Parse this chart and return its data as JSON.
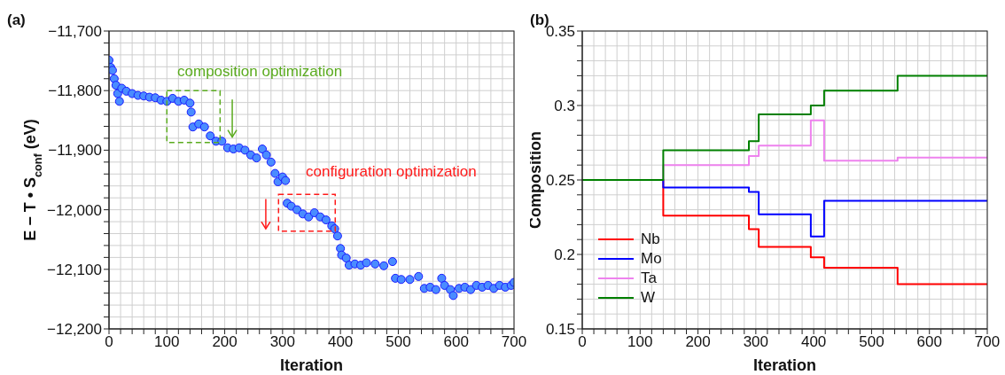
{
  "chart_data": [
    {
      "type": "scatter",
      "title": "(a)",
      "xlabel": "Iteration",
      "ylabel": "E − T • S$_{conf}$ (eV)",
      "color": "#4a8cff",
      "marker": "circle",
      "grid": true,
      "x": [
        0,
        3,
        6,
        9,
        12,
        15,
        18,
        22,
        30,
        40,
        50,
        60,
        70,
        80,
        90,
        100,
        110,
        120,
        130,
        140,
        142,
        145,
        155,
        165,
        175,
        185,
        195,
        205,
        215,
        225,
        235,
        245,
        255,
        265,
        272,
        280,
        287,
        292,
        300,
        305,
        308,
        315,
        325,
        335,
        345,
        355,
        365,
        375,
        385,
        390,
        395,
        400,
        402,
        410,
        415,
        425,
        435,
        445,
        460,
        475,
        490,
        495,
        505,
        520,
        535,
        545,
        555,
        565,
        575,
        580,
        590,
        595,
        605,
        615,
        625,
        635,
        645,
        655,
        665,
        675,
        685,
        695,
        700
      ],
      "values": [
        -11749,
        -11761,
        -11766,
        -11780,
        -11791,
        -11805,
        -11818,
        -11796,
        -11801,
        -11805,
        -11808,
        -11809,
        -11811,
        -11812,
        -11816,
        -11818,
        -11813,
        -11818,
        -11816,
        -11821,
        -11836,
        -11861,
        -11856,
        -11861,
        -11876,
        -11885,
        -11885,
        -11896,
        -11898,
        -11896,
        -11900,
        -11908,
        -11913,
        -11898,
        -11908,
        -11920,
        -11939,
        -11953,
        -11945,
        -11951,
        -11989,
        -11994,
        -12000,
        -12007,
        -12012,
        -12005,
        -12012,
        -12017,
        -12027,
        -12032,
        -12044,
        -12065,
        -12076,
        -12081,
        -12093,
        -12091,
        -12093,
        -12089,
        -12091,
        -12094,
        -12087,
        -12115,
        -12117,
        -12117,
        -12112,
        -12132,
        -12130,
        -12134,
        -12115,
        -12127,
        -12134,
        -12144,
        -12132,
        -12130,
        -12134,
        -12127,
        -12130,
        -12127,
        -12132,
        -12127,
        -12130,
        -12127,
        -12122
      ],
      "xlim": [
        0,
        700
      ],
      "xticks": [
        0,
        {
          "value": 20,
          "label": null
        },
        {
          "value": 40,
          "label": null
        },
        {
          "value": 60,
          "label": null
        },
        {
          "value": 80,
          "label": null
        },
        100,
        {
          "value": 120,
          "label": null
        },
        {
          "value": 140,
          "label": null
        },
        {
          "value": 160,
          "label": null
        },
        {
          "value": 180,
          "label": null
        },
        200,
        {
          "value": 220,
          "label": null
        },
        {
          "value": 240,
          "label": null
        },
        {
          "value": 260,
          "label": null
        },
        {
          "value": 280,
          "label": null
        },
        300,
        {
          "value": 320,
          "label": null
        },
        {
          "value": 340,
          "label": null
        },
        {
          "value": 360,
          "label": null
        },
        {
          "value": 380,
          "label": null
        },
        400,
        {
          "value": 420,
          "label": null
        },
        {
          "value": 440,
          "label": null
        },
        {
          "value": 460,
          "label": null
        },
        {
          "value": 480,
          "label": null
        },
        500,
        {
          "value": 520,
          "label": null
        },
        {
          "value": 540,
          "label": null
        },
        {
          "value": 560,
          "label": null
        },
        {
          "value": 580,
          "label": null
        },
        600,
        {
          "value": 620,
          "label": null
        },
        {
          "value": 640,
          "label": null
        },
        {
          "value": 660,
          "label": null
        },
        {
          "value": 680,
          "label": null
        },
        700
      ],
      "ylim": [
        -12200,
        -11700
      ],
      "yticks": [
        {
          "value": -12200,
          "label": "−12,200"
        },
        {
          "value": -12180,
          "label": null
        },
        {
          "value": -12160,
          "label": null
        },
        {
          "value": -12140,
          "label": null
        },
        {
          "value": -12120,
          "label": null
        },
        {
          "value": -12100,
          "label": "−12,100"
        },
        {
          "value": -12080,
          "label": null
        },
        {
          "value": -12060,
          "label": null
        },
        {
          "value": -12040,
          "label": null
        },
        {
          "value": -12020,
          "label": null
        },
        {
          "value": -12000,
          "label": "−12,000"
        },
        {
          "value": -11980,
          "label": null
        },
        {
          "value": -11960,
          "label": null
        },
        {
          "value": -11940,
          "label": null
        },
        {
          "value": -11920,
          "label": null
        },
        {
          "value": -11900,
          "label": "−11,900"
        },
        {
          "value": -11880,
          "label": null
        },
        {
          "value": -11860,
          "label": null
        },
        {
          "value": -11840,
          "label": null
        },
        {
          "value": -11820,
          "label": null
        },
        {
          "value": -11800,
          "label": "−11,800"
        },
        {
          "value": -11780,
          "label": null
        },
        {
          "value": -11760,
          "label": null
        },
        {
          "value": -11740,
          "label": null
        },
        {
          "value": -11720,
          "label": null
        },
        {
          "value": -11700,
          "label": "−11,700"
        }
      ],
      "annotations": [
        "composition optimization",
        "configuration optimization"
      ]
    },
    {
      "type": "step",
      "title": "(b)",
      "xlabel": "Iteration",
      "ylabel": "Composition",
      "grid": true,
      "legend": "bottom left",
      "x": [
        0,
        140,
        288,
        305,
        395,
        418,
        545,
        700
      ],
      "series": [
        {
          "name": "Nb",
          "color": "#ff0000",
          "values": [
            0.25,
            0.226,
            0.217,
            0.205,
            0.198,
            0.191,
            0.18,
            0.18
          ]
        },
        {
          "name": "Mo",
          "color": "#0000ff",
          "values": [
            0.25,
            0.245,
            0.242,
            0.227,
            0.212,
            0.236,
            0.236,
            0.236
          ]
        },
        {
          "name": "Ta",
          "color": "#ee82ee",
          "values": [
            0.25,
            0.26,
            0.266,
            0.273,
            0.29,
            0.263,
            0.265,
            0.265
          ]
        },
        {
          "name": "W",
          "color": "#008000",
          "values": [
            0.25,
            0.27,
            0.276,
            0.294,
            0.3,
            0.31,
            0.32,
            0.32
          ]
        }
      ],
      "xlim": [
        0,
        700
      ],
      "xticks": [
        0,
        {
          "value": 20,
          "label": null
        },
        {
          "value": 40,
          "label": null
        },
        {
          "value": 60,
          "label": null
        },
        {
          "value": 80,
          "label": null
        },
        100,
        {
          "value": 120,
          "label": null
        },
        {
          "value": 140,
          "label": null
        },
        {
          "value": 160,
          "label": null
        },
        {
          "value": 180,
          "label": null
        },
        200,
        {
          "value": 220,
          "label": null
        },
        {
          "value": 240,
          "label": null
        },
        {
          "value": 260,
          "label": null
        },
        {
          "value": 280,
          "label": null
        },
        300,
        {
          "value": 320,
          "label": null
        },
        {
          "value": 340,
          "label": null
        },
        {
          "value": 360,
          "label": null
        },
        {
          "value": 380,
          "label": null
        },
        400,
        {
          "value": 420,
          "label": null
        },
        {
          "value": 440,
          "label": null
        },
        {
          "value": 460,
          "label": null
        },
        {
          "value": 480,
          "label": null
        },
        500,
        {
          "value": 520,
          "label": null
        },
        {
          "value": 540,
          "label": null
        },
        {
          "value": 560,
          "label": null
        },
        {
          "value": 580,
          "label": null
        },
        600,
        {
          "value": 620,
          "label": null
        },
        {
          "value": 640,
          "label": null
        },
        {
          "value": 660,
          "label": null
        },
        {
          "value": 680,
          "label": null
        },
        700
      ],
      "ylim": [
        0.15,
        0.35
      ],
      "yticks": [
        0.15,
        {
          "value": 0.16,
          "label": null
        },
        {
          "value": 0.17,
          "label": null
        },
        {
          "value": 0.18,
          "label": null
        },
        {
          "value": 0.19,
          "label": null
        },
        0.2,
        {
          "value": 0.21,
          "label": null
        },
        {
          "value": 0.22,
          "label": null
        },
        {
          "value": 0.23,
          "label": null
        },
        {
          "value": 0.24,
          "label": null
        },
        0.25,
        {
          "value": 0.26,
          "label": null
        },
        {
          "value": 0.27,
          "label": null
        },
        {
          "value": 0.28,
          "label": null
        },
        {
          "value": 0.29,
          "label": null
        },
        0.3,
        {
          "value": 0.31,
          "label": null
        },
        {
          "value": 0.32,
          "label": null
        },
        {
          "value": 0.33,
          "label": null
        },
        {
          "value": 0.34,
          "label": null
        },
        0.35
      ]
    }
  ]
}
